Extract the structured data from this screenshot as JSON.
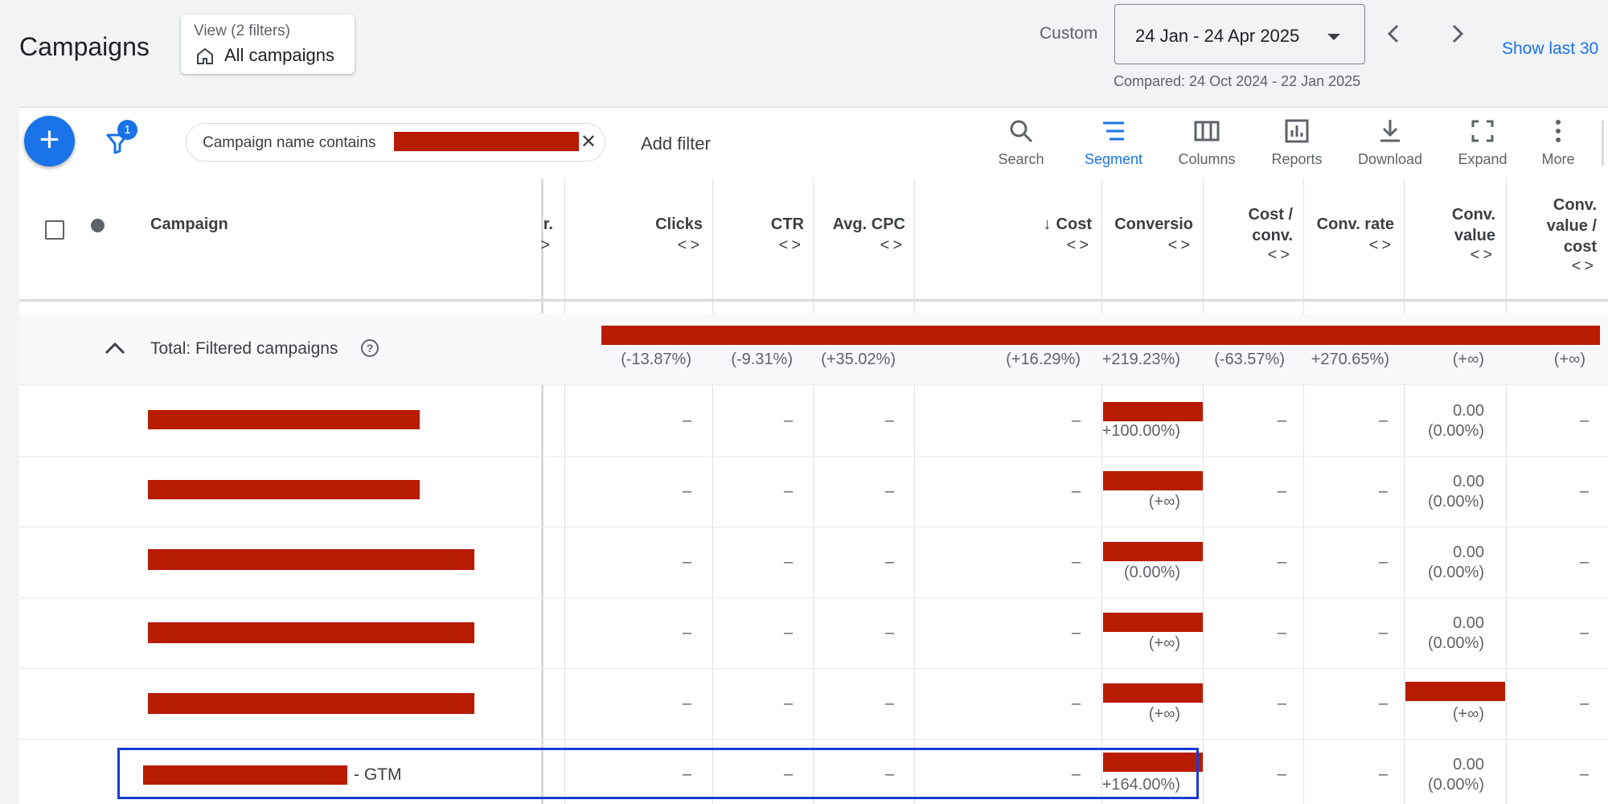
{
  "header": {
    "title": "Campaigns",
    "view_sub": "View (2 filters)",
    "view_main": "All campaigns",
    "custom_label": "Custom",
    "date_range": "24 Jan - 24 Apr 2025",
    "compared": "Compared: 24 Oct 2024 - 22 Jan 2025",
    "show_last": "Show last 30"
  },
  "filter_bar": {
    "badge_count": "1",
    "chip_text": "Campaign name contains",
    "add_filter": "Add filter"
  },
  "toolbar": {
    "search": "Search",
    "segment": "Segment",
    "columns": "Columns",
    "reports": "Reports",
    "download": "Download",
    "expand": "Expand",
    "more": "More"
  },
  "columns": {
    "campaign": "Campaign",
    "partial": "r.",
    "clicks": "Clicks",
    "ctr": "CTR",
    "avg_cpc": "Avg. CPC",
    "cost": "Cost",
    "conversions": "Conversio",
    "cost_conv_1": "Cost /",
    "cost_conv_2": "conv.",
    "conv_rate": "Conv. rate",
    "conv_value_1": "Conv.",
    "conv_value_2": "value",
    "cvc_1": "Conv.",
    "cvc_2": "value /",
    "cvc_3": "cost",
    "sort_arrows": "<>",
    "sort_down": "↓"
  },
  "total": {
    "label": "Total: Filtered campaigns",
    "help": "?",
    "clicks": "(-13.87%)",
    "ctr": "(-9.31%)",
    "avg_cpc": "(+35.02%)",
    "cost": "(+16.29%)",
    "conversions": "+219.23%)",
    "cost_conv": "(-63.57%)",
    "conv_rate": "+270.65%)",
    "conv_value": "(+∞)",
    "cvc": "(+∞)"
  },
  "rows": [
    {
      "dash": "–",
      "conv_change": "+100.00%)",
      "conv_value": "0.00",
      "conv_value_change": "(0.00%)"
    },
    {
      "dash": "–",
      "conv_change": "(+∞)",
      "conv_value": "0.00",
      "conv_value_change": "(0.00%)"
    },
    {
      "dash": "–",
      "conv_change": "(0.00%)",
      "conv_value": "0.00",
      "conv_value_change": "(0.00%)"
    },
    {
      "dash": "–",
      "conv_change": "(+∞)",
      "conv_value": "0.00",
      "conv_value_change": "(0.00%)"
    },
    {
      "dash": "–",
      "conv_change": "(+∞)",
      "conv_value": "",
      "conv_value_change": "(+∞)"
    },
    {
      "dash": "–",
      "conv_change": "+164.00%)",
      "conv_value": "0.00",
      "conv_value_change": "(0.00%)",
      "suffix": "- GTM"
    }
  ],
  "colors": {
    "accent": "#1a73e8",
    "redaction": "#b71c00",
    "highlight_box": "#1a3bd6"
  }
}
